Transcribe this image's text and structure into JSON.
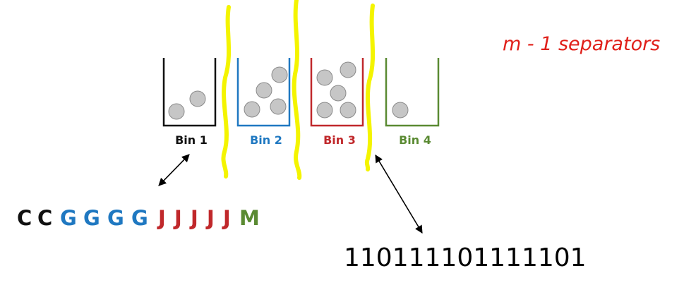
{
  "note": {
    "text": "m - 1 separators",
    "color": "#e0201a"
  },
  "colors": {
    "bin1": "#111111",
    "bin2": "#1f78c1",
    "bin3": "#c0282b",
    "bin4": "#5a8a32",
    "ball_fill": "#c6c6c6",
    "ball_stroke": "#8a8a8a",
    "separator": "#f4f400"
  },
  "bins": [
    {
      "label": "Bin 1",
      "ball_count": 2
    },
    {
      "label": "Bin 2",
      "ball_count": 4
    },
    {
      "label": "Bin 3",
      "ball_count": 5
    },
    {
      "label": "Bin 4",
      "ball_count": 1
    }
  ],
  "letters": [
    {
      "char": "C",
      "bin": 1
    },
    {
      "char": "C",
      "bin": 1
    },
    {
      "char": "G",
      "bin": 2
    },
    {
      "char": "G",
      "bin": 2
    },
    {
      "char": "G",
      "bin": 2
    },
    {
      "char": "G",
      "bin": 2
    },
    {
      "char": "J",
      "bin": 3
    },
    {
      "char": "J",
      "bin": 3
    },
    {
      "char": "J",
      "bin": 3
    },
    {
      "char": "J",
      "bin": 3
    },
    {
      "char": "J",
      "bin": 3
    },
    {
      "char": "M",
      "bin": 4
    }
  ],
  "binary": "110111101111101"
}
